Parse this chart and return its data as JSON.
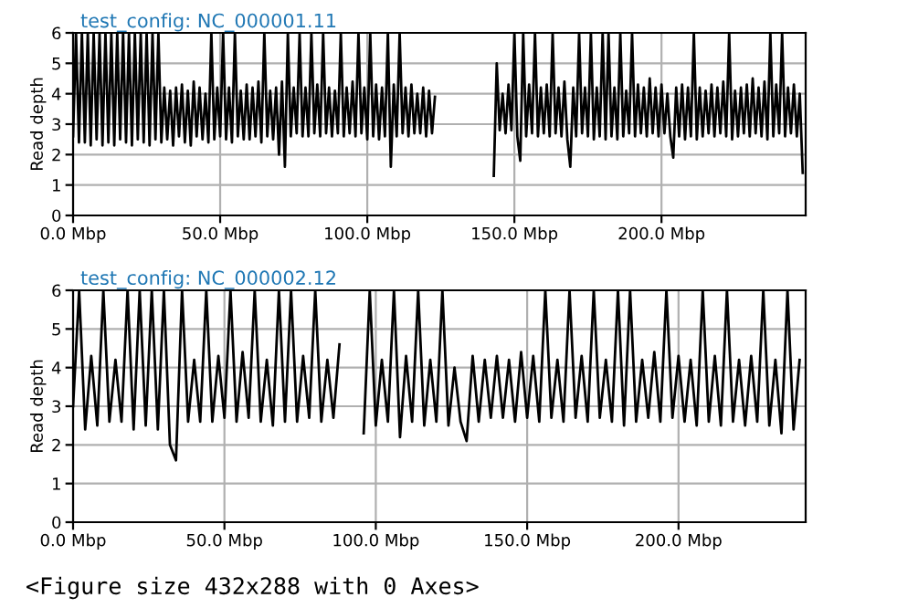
{
  "chart_data": [
    {
      "type": "line",
      "title": "test_config: NC_000001.11",
      "ylabel": "Read depth",
      "xlim": [
        0,
        249
      ],
      "ylim": [
        0,
        6
      ],
      "grid": true,
      "line_style": "solid",
      "marker": "none",
      "xticks": [
        {
          "value": 0,
          "label": "0.0 Mbp"
        },
        {
          "value": 50,
          "label": "50.0 Mbp"
        },
        {
          "value": 100,
          "label": "100.0 Mbp"
        },
        {
          "value": 150,
          "label": "150.0 Mbp"
        },
        {
          "value": 200,
          "label": "200.0 Mbp"
        }
      ],
      "yticks": [
        0,
        1,
        2,
        3,
        4,
        5,
        6
      ],
      "series": [
        {
          "color": "#000000",
          "x": [
            0,
            1,
            2,
            3,
            4,
            5,
            6,
            7,
            8,
            9,
            10,
            11,
            12,
            13,
            14,
            15,
            16,
            17,
            18,
            19,
            20,
            21,
            22,
            23,
            24,
            25,
            26,
            27,
            28,
            29,
            30,
            31,
            32,
            33,
            34,
            35,
            36,
            37,
            38,
            39,
            40,
            41,
            42,
            43,
            44,
            45,
            46,
            47,
            48,
            49,
            50,
            51,
            52,
            53,
            54,
            55,
            56,
            57,
            58,
            59,
            60,
            61,
            62,
            63,
            64,
            65,
            66,
            67,
            68,
            69,
            70,
            71,
            72,
            73,
            74,
            75,
            76,
            77,
            78,
            79,
            80,
            81,
            82,
            83,
            84,
            85,
            86,
            87,
            88,
            89,
            90,
            91,
            92,
            93,
            94,
            95,
            96,
            97,
            98,
            99,
            100,
            101,
            102,
            103,
            104,
            105,
            106,
            107,
            108,
            109,
            110,
            111,
            112,
            113,
            114,
            115,
            116,
            117,
            118,
            119,
            120,
            121,
            122,
            123,
            124,
            143,
            144,
            145,
            146,
            147,
            148,
            149,
            150,
            151,
            152,
            153,
            154,
            155,
            156,
            157,
            158,
            159,
            160,
            161,
            162,
            163,
            164,
            165,
            166,
            167,
            168,
            169,
            170,
            171,
            172,
            173,
            174,
            175,
            176,
            177,
            178,
            179,
            180,
            181,
            182,
            183,
            184,
            185,
            186,
            187,
            188,
            189,
            190,
            191,
            192,
            193,
            194,
            195,
            196,
            197,
            198,
            199,
            200,
            201,
            202,
            203,
            204,
            205,
            206,
            207,
            208,
            209,
            210,
            211,
            212,
            213,
            214,
            215,
            216,
            217,
            218,
            219,
            220,
            221,
            222,
            223,
            224,
            225,
            226,
            227,
            228,
            229,
            230,
            231,
            232,
            233,
            234,
            235,
            236,
            237,
            238,
            239,
            240,
            241,
            242,
            243,
            244,
            245,
            246,
            247,
            248
          ],
          "values": [
            2.6,
            6,
            2.4,
            6,
            2.4,
            6,
            2.3,
            6,
            2.5,
            6,
            2.3,
            6,
            2.4,
            6,
            2.3,
            6,
            2.5,
            6,
            2.4,
            6,
            2.3,
            6,
            2.5,
            6,
            2.4,
            6,
            2.3,
            6,
            2.5,
            6,
            2.4,
            4.2,
            2.5,
            4.1,
            2.3,
            4.2,
            2.6,
            4.3,
            2.4,
            4.1,
            2.3,
            4.4,
            2.6,
            4.2,
            2.5,
            4.0,
            2.4,
            6,
            2.5,
            4.2,
            2.6,
            6,
            2.5,
            4.2,
            2.4,
            6,
            2.6,
            4.1,
            2.5,
            4.3,
            2.5,
            4.2,
            2.6,
            4.4,
            2.4,
            6,
            2.6,
            4.1,
            2.5,
            4.2,
            2.0,
            4.4,
            1.6,
            6,
            2.6,
            4.2,
            2.7,
            6,
            2.6,
            4.2,
            2.6,
            6,
            2.7,
            4.3,
            2.6,
            6,
            2.7,
            4.2,
            2.6,
            4.1,
            2.7,
            6,
            2.6,
            4.2,
            2.7,
            4.4,
            2.6,
            6,
            2.7,
            4.2,
            2.5,
            6,
            2.6,
            4.3,
            2.5,
            4.2,
            2.6,
            6,
            1.6,
            4.3,
            2.6,
            6,
            2.7,
            4.2,
            2.6,
            4.3,
            2.7,
            4.0,
            2.7,
            4.2,
            2.6,
            4.1,
            2.7,
            3.9,
            null,
            1.3,
            5.0,
            2.8,
            4.0,
            2.7,
            4.3,
            2.8,
            6,
            2.6,
            1.8,
            6,
            2.6,
            4.3,
            2.7,
            6,
            2.6,
            4.2,
            2.7,
            4.3,
            2.6,
            6,
            2.7,
            4.2,
            2.6,
            4.4,
            2.5,
            1.6,
            4.2,
            2.6,
            6,
            2.7,
            4.2,
            2.6,
            6,
            2.5,
            4.2,
            2.6,
            6,
            2.5,
            6,
            2.6,
            4.2,
            2.5,
            6,
            2.6,
            4.1,
            2.7,
            6,
            2.6,
            4.3,
            2.7,
            4.2,
            2.6,
            4.5,
            2.7,
            4.2,
            2.6,
            4.3,
            2.7,
            4.0,
            2.6,
            1.9,
            4.2,
            2.6,
            4.3,
            2.5,
            4.2,
            2.6,
            6,
            2.5,
            4.2,
            2.6,
            4.1,
            2.7,
            4.3,
            2.6,
            4.2,
            2.7,
            4.4,
            2.6,
            6,
            2.5,
            4.1,
            2.6,
            4.2,
            2.7,
            4.3,
            2.6,
            4.5,
            2.7,
            4.2,
            2.6,
            4.4,
            2.5,
            6,
            2.6,
            4.3,
            2.7,
            6,
            2.6,
            4.2,
            2.7,
            4.3,
            2.6,
            4.0,
            1.4
          ]
        }
      ]
    },
    {
      "type": "line",
      "title": "test_config: NC_000002.12",
      "ylabel": "Read depth",
      "xlim": [
        0,
        242
      ],
      "ylim": [
        0,
        6
      ],
      "grid": true,
      "line_style": "solid",
      "marker": "none",
      "xticks": [
        {
          "value": 0,
          "label": "0.0 Mbp"
        },
        {
          "value": 50,
          "label": "50.0 Mbp"
        },
        {
          "value": 100,
          "label": "100.0 Mbp"
        },
        {
          "value": 150,
          "label": "150.0 Mbp"
        },
        {
          "value": 200,
          "label": "200.0 Mbp"
        }
      ],
      "yticks": [
        0,
        1,
        2,
        3,
        4,
        5,
        6
      ],
      "annotations": [
        "<Figure size 432x288 with 0 Axes>"
      ],
      "series": [
        {
          "color": "#000000",
          "x": [
            0,
            2,
            4,
            6,
            8,
            10,
            12,
            14,
            16,
            18,
            20,
            22,
            24,
            26,
            28,
            30,
            32,
            34,
            36,
            38,
            40,
            42,
            44,
            46,
            48,
            50,
            52,
            54,
            56,
            58,
            60,
            62,
            64,
            66,
            68,
            70,
            72,
            74,
            76,
            78,
            80,
            82,
            84,
            86,
            88,
            90,
            92,
            94,
            96,
            98,
            100,
            102,
            104,
            106,
            108,
            110,
            112,
            114,
            116,
            118,
            120,
            122,
            124,
            126,
            128,
            130,
            132,
            134,
            136,
            138,
            140,
            142,
            144,
            146,
            148,
            150,
            152,
            154,
            156,
            158,
            160,
            162,
            164,
            166,
            168,
            170,
            172,
            174,
            176,
            178,
            180,
            182,
            184,
            186,
            188,
            190,
            192,
            194,
            196,
            198,
            200,
            202,
            204,
            206,
            208,
            210,
            212,
            214,
            216,
            218,
            220,
            222,
            224,
            226,
            228,
            230,
            232,
            234,
            236,
            238,
            240
          ],
          "values": [
            3.0,
            6,
            2.4,
            4.3,
            2.5,
            6,
            2.6,
            4.2,
            2.6,
            6,
            2.4,
            6,
            2.5,
            6,
            2.4,
            6,
            2.0,
            1.6,
            6,
            2.6,
            4.2,
            2.6,
            6,
            2.6,
            4.3,
            2.7,
            6,
            2.6,
            4.4,
            2.7,
            6,
            2.6,
            4.2,
            2.5,
            6,
            2.6,
            6,
            2.6,
            4.3,
            2.7,
            6,
            2.6,
            4.2,
            2.7,
            4.6,
            null,
            null,
            null,
            2.3,
            6,
            2.5,
            4.2,
            2.6,
            6,
            2.2,
            4.3,
            2.6,
            6,
            2.5,
            4.2,
            2.6,
            6,
            2.5,
            4.0,
            2.6,
            2.1,
            4.3,
            2.6,
            4.2,
            2.7,
            4.3,
            2.7,
            4.2,
            2.6,
            4.4,
            2.7,
            4.3,
            2.6,
            6,
            2.7,
            4.2,
            2.6,
            6,
            2.7,
            4.3,
            2.6,
            6,
            2.7,
            4.2,
            2.6,
            6,
            2.5,
            6,
            2.6,
            4.2,
            2.7,
            4.4,
            2.6,
            6,
            2.7,
            4.3,
            2.6,
            4.2,
            2.5,
            6,
            2.6,
            4.3,
            2.5,
            6,
            2.6,
            4.2,
            2.5,
            4.3,
            2.6,
            6,
            2.5,
            4.2,
            2.3,
            6,
            2.4,
            4.2
          ]
        }
      ]
    }
  ]
}
